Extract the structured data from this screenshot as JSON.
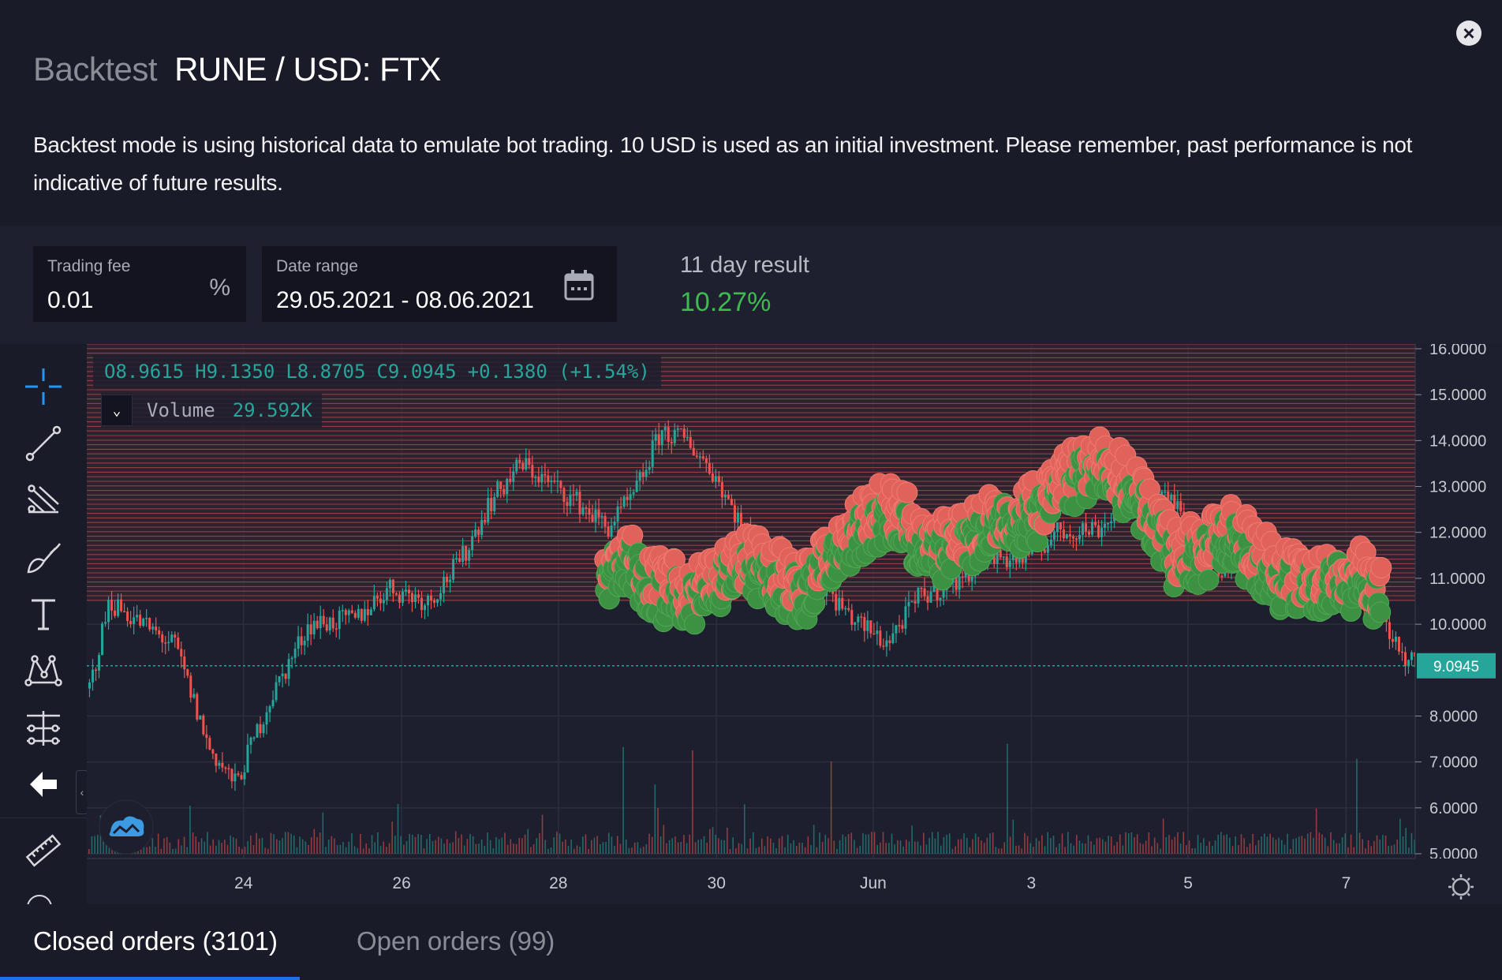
{
  "header": {
    "prefix": "Backtest",
    "pair": "RUNE / USD: FTX",
    "description": "Backtest mode is using historical data to emulate bot trading. 10 USD is used as an initial investment. Please remember, past performance is not indicative of future results."
  },
  "controls": {
    "trading_fee": {
      "label": "Trading fee",
      "value": "0.01",
      "suffix": "%"
    },
    "date_range": {
      "label": "Date range",
      "value": "29.05.2021 - 08.06.2021"
    },
    "result": {
      "label": "11 day result",
      "value": "10.27%"
    }
  },
  "chart": {
    "ohlc": {
      "o": "O8.9615",
      "h": "H9.1350",
      "l": "L8.8705",
      "c": "C9.0945",
      "change": "+0.1380 (+1.54%)"
    },
    "volume_label": "Volume",
    "volume_value": "29.592K",
    "last_price": "9.0945",
    "colors": {
      "up": "#26a69a",
      "down": "#ef5350",
      "buy": "#3d9142",
      "sell": "#e0625a",
      "accent": "#1f6feb"
    }
  },
  "chart_data": {
    "type": "candlestick",
    "title": "RUNE / USD: FTX",
    "ylim": [
      5,
      16
    ],
    "yticks": [
      "16.0000",
      "15.0000",
      "14.0000",
      "13.0000",
      "12.0000",
      "11.0000",
      "10.0000",
      "8.0000",
      "7.0000",
      "6.0000",
      "5.0000"
    ],
    "xticks": [
      "24",
      "26",
      "28",
      "30",
      "Jun",
      "3",
      "5",
      "7"
    ],
    "last_price": 9.0945,
    "grid_band": [
      10.5,
      16
    ],
    "price_path": [
      [
        0,
        8.6
      ],
      [
        0.015,
        10.5
      ],
      [
        0.04,
        10.0
      ],
      [
        0.065,
        9.5
      ],
      [
        0.09,
        7.3
      ],
      [
        0.11,
        6.5
      ],
      [
        0.135,
        8.3
      ],
      [
        0.165,
        10.0
      ],
      [
        0.2,
        10.1
      ],
      [
        0.225,
        10.8
      ],
      [
        0.255,
        10.5
      ],
      [
        0.28,
        11.4
      ],
      [
        0.3,
        12.6
      ],
      [
        0.325,
        13.5
      ],
      [
        0.35,
        13.0
      ],
      [
        0.37,
        12.6
      ],
      [
        0.39,
        12.1
      ],
      [
        0.41,
        12.8
      ],
      [
        0.43,
        14.2
      ],
      [
        0.45,
        14.0
      ],
      [
        0.47,
        13.3
      ],
      [
        0.49,
        12.2
      ],
      [
        0.505,
        11.4
      ],
      [
        0.52,
        11.6
      ],
      [
        0.55,
        10.9
      ],
      [
        0.575,
        10.1
      ],
      [
        0.6,
        9.6
      ],
      [
        0.625,
        10.6
      ],
      [
        0.65,
        10.9
      ],
      [
        0.675,
        11.5
      ],
      [
        0.7,
        11.4
      ],
      [
        0.73,
        12.0
      ],
      [
        0.76,
        12.1
      ],
      [
        0.79,
        12.9
      ],
      [
        0.82,
        12.6
      ],
      [
        0.85,
        11.2
      ],
      [
        0.875,
        11.6
      ],
      [
        0.9,
        11.3
      ],
      [
        0.925,
        10.6
      ],
      [
        0.95,
        10.9
      ],
      [
        0.97,
        10.4
      ],
      [
        0.985,
        9.4
      ],
      [
        1.0,
        9.09
      ]
    ],
    "orders_path": [
      [
        0.39,
        11.2
      ],
      [
        0.41,
        11.4
      ],
      [
        0.43,
        10.8
      ],
      [
        0.455,
        10.6
      ],
      [
        0.48,
        11.0
      ],
      [
        0.5,
        11.3
      ],
      [
        0.52,
        11.0
      ],
      [
        0.54,
        10.7
      ],
      [
        0.56,
        11.4
      ],
      [
        0.58,
        12.0
      ],
      [
        0.6,
        12.5
      ],
      [
        0.62,
        12.1
      ],
      [
        0.64,
        11.6
      ],
      [
        0.66,
        11.7
      ],
      [
        0.68,
        12.2
      ],
      [
        0.7,
        12.3
      ],
      [
        0.72,
        12.5
      ],
      [
        0.74,
        13.2
      ],
      [
        0.76,
        13.4
      ],
      [
        0.78,
        13.1
      ],
      [
        0.8,
        12.5
      ],
      [
        0.82,
        11.4
      ],
      [
        0.84,
        11.6
      ],
      [
        0.86,
        12.0
      ],
      [
        0.88,
        11.5
      ],
      [
        0.9,
        11.0
      ],
      [
        0.92,
        10.9
      ],
      [
        0.94,
        11.0
      ],
      [
        0.96,
        11.0
      ],
      [
        0.975,
        10.5
      ]
    ]
  },
  "tabs": [
    {
      "label": "Closed orders (3101)"
    },
    {
      "label": "Open orders (99)"
    }
  ]
}
